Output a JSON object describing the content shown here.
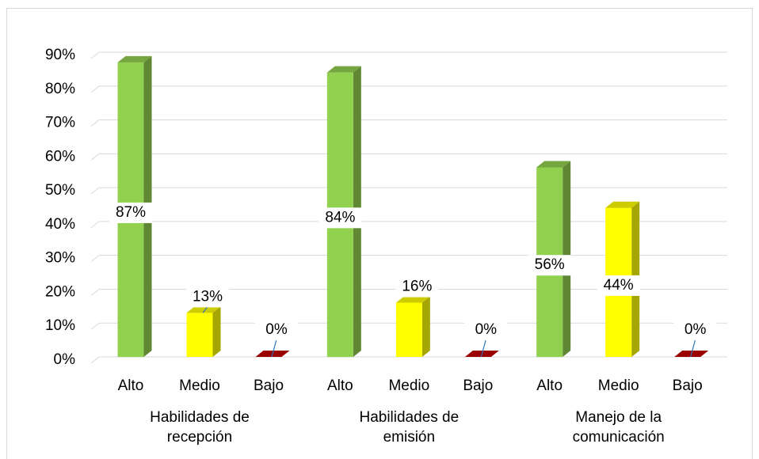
{
  "chart_data": {
    "type": "bar3d",
    "categories": [
      "Habilidades de recepción",
      "Habilidades de emisión",
      "Manejo de la comunicación"
    ],
    "series": [
      {
        "name": "Alto",
        "color": "#92d050",
        "values": [
          87,
          84,
          56
        ],
        "value_labels": [
          "87%",
          "84%",
          "56%"
        ]
      },
      {
        "name": "Medio",
        "color": "#ffff00",
        "values": [
          13,
          16,
          44
        ],
        "value_labels": [
          "13%",
          "16%",
          "44%"
        ]
      },
      {
        "name": "Bajo",
        "color": "#c00000",
        "values": [
          0,
          0,
          0
        ],
        "value_labels": [
          "0%",
          "0%",
          "0%"
        ]
      }
    ],
    "ylim": [
      0,
      90
    ],
    "yticks": [
      {
        "value": 0,
        "label": "0%"
      },
      {
        "value": 10,
        "label": "10%"
      },
      {
        "value": 20,
        "label": "20%"
      },
      {
        "value": 30,
        "label": "30%"
      },
      {
        "value": 40,
        "label": "40%"
      },
      {
        "value": 50,
        "label": "50%"
      },
      {
        "value": 60,
        "label": "60%"
      },
      {
        "value": 70,
        "label": "70%"
      },
      {
        "value": 80,
        "label": "80%"
      },
      {
        "value": 90,
        "label": "90%"
      }
    ],
    "grid": true
  }
}
